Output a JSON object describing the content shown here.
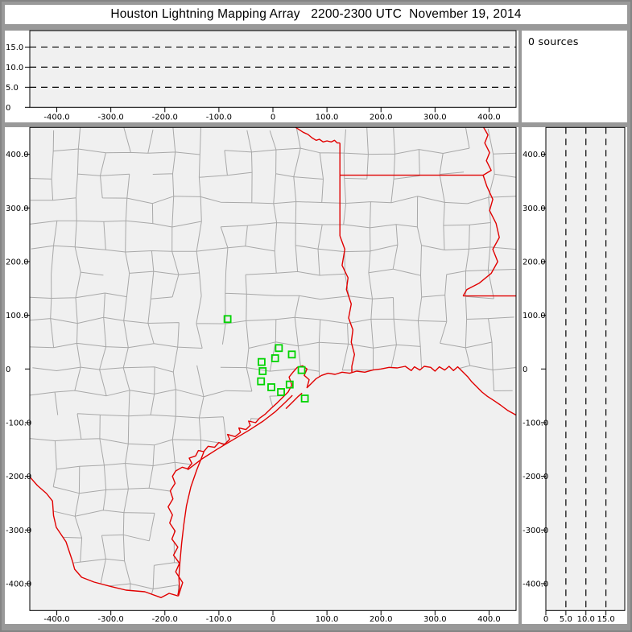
{
  "title": "Houston Lightning Mapping Array   2200-2300 UTC  November 19, 2014",
  "sources_panel": {
    "text": "0 sources"
  },
  "colors": {
    "chrome": "#999999",
    "panel_bg": "#ffffff",
    "plot_bg": "#f0f0f0",
    "county_line": "#a8a8a8",
    "state_line": "#e10000",
    "station": "#00d400",
    "dash_line": "#000000",
    "text": "#000000"
  },
  "chart_data": [
    {
      "id": "alt-vs-ew",
      "type": "scatter",
      "orientation": "altitude-vs-eastwest",
      "xlim": [
        -450,
        450
      ],
      "ylim": [
        0,
        19.1
      ],
      "x_ticks": {
        "values": [
          -400,
          -300,
          -200,
          -100,
          0,
          100,
          200,
          300,
          400
        ],
        "labels": [
          "-400.0",
          "-300.0",
          "-200.0",
          "-100.0",
          "0",
          "100.0",
          "200.0",
          "300.0",
          "400.0"
        ]
      },
      "y_ticks": {
        "values": [
          0,
          5,
          10,
          15
        ],
        "labels": [
          "0",
          "5.0",
          "10.0",
          "15.0"
        ]
      },
      "dashed_levels": [
        5,
        10,
        15
      ],
      "points": []
    },
    {
      "id": "plan-view-map",
      "type": "scatter",
      "orientation": "plan-view",
      "xlim": [
        -450,
        450
      ],
      "ylim": [
        -450,
        450
      ],
      "x_ticks": {
        "values": [
          -400,
          -300,
          -200,
          -100,
          0,
          100,
          200,
          300,
          400
        ],
        "labels": [
          "-400.0",
          "-300.0",
          "-200.0",
          "-100.0",
          "0",
          "100.0",
          "200.0",
          "300.0",
          "400.0"
        ]
      },
      "y_ticks": {
        "values": [
          400,
          300,
          200,
          100,
          0,
          -100,
          -200,
          -300,
          -400
        ],
        "labels": [
          "400.0",
          "300.0",
          "200.0",
          "100.0",
          "0",
          "-100.0",
          "-200.0",
          "-300.0",
          "-400.0"
        ]
      },
      "points": [],
      "stations": [
        [
          -84,
          93
        ],
        [
          11,
          39
        ],
        [
          35,
          27
        ],
        [
          4,
          20
        ],
        [
          -21,
          13
        ],
        [
          -19,
          -4
        ],
        [
          53,
          -2
        ],
        [
          -22,
          -23
        ],
        [
          -3,
          -34
        ],
        [
          31,
          -29
        ],
        [
          15,
          -43
        ],
        [
          59,
          -55
        ]
      ]
    },
    {
      "id": "alt-vs-ns",
      "type": "scatter",
      "orientation": "northsouth-vs-altitude",
      "xlim": [
        0,
        19.7
      ],
      "ylim": [
        -450,
        450
      ],
      "x_ticks": {
        "values": [
          0,
          5,
          10,
          15
        ],
        "labels": [
          "0",
          "5.0",
          "10.0",
          "15.0"
        ]
      },
      "y_ticks": {
        "values": [
          400,
          300,
          200,
          100,
          0,
          -100,
          -200,
          -300,
          -400
        ],
        "labels": [
          "400.0",
          "300.0",
          "200.0",
          "100.0",
          "0",
          "-100.0",
          "-200.0",
          "-300.0",
          "-400.0"
        ]
      },
      "dashed_levels": [
        5,
        10,
        15
      ],
      "points": []
    }
  ],
  "map_features": {
    "rio_grande": [
      [
        -450,
        -201
      ],
      [
        -436,
        -217
      ],
      [
        -419,
        -232
      ],
      [
        -408,
        -246
      ],
      [
        -406,
        -273
      ],
      [
        -401,
        -295
      ],
      [
        -383,
        -322
      ],
      [
        -371,
        -358
      ],
      [
        -367,
        -373
      ],
      [
        -354,
        -388
      ],
      [
        -331,
        -397
      ],
      [
        -301,
        -405
      ],
      [
        -272,
        -412
      ],
      [
        -237,
        -415
      ],
      [
        -207,
        -426
      ],
      [
        -192,
        -418
      ],
      [
        -175,
        -423
      ]
    ],
    "coast": [
      [
        -175,
        -423
      ],
      [
        -167,
        -398
      ],
      [
        -180,
        -378
      ],
      [
        -173,
        -362
      ],
      [
        -184,
        -347
      ],
      [
        -176,
        -332
      ],
      [
        -187,
        -317
      ],
      [
        -181,
        -302
      ],
      [
        -191,
        -287
      ],
      [
        -186,
        -272
      ],
      [
        -194,
        -257
      ],
      [
        -185,
        -242
      ],
      [
        -190,
        -227
      ],
      [
        -181,
        -213
      ],
      [
        -186,
        -200
      ],
      [
        -180,
        -190
      ],
      [
        -168,
        -183
      ],
      [
        -158,
        -186
      ],
      [
        -150,
        -176
      ],
      [
        -155,
        -166
      ],
      [
        -143,
        -162
      ],
      [
        -138,
        -152
      ],
      [
        -128,
        -154
      ],
      [
        -120,
        -144
      ],
      [
        -108,
        -146
      ],
      [
        -100,
        -137
      ],
      [
        -90,
        -141
      ],
      [
        -80,
        -131
      ],
      [
        -84,
        -122
      ],
      [
        -70,
        -126
      ],
      [
        -60,
        -118
      ],
      [
        -63,
        -110
      ],
      [
        -50,
        -113
      ],
      [
        -42,
        -105
      ],
      [
        -45,
        -97
      ],
      [
        -32,
        -100
      ],
      [
        -25,
        -92
      ],
      [
        -14,
        -84
      ],
      [
        -3,
        -73
      ],
      [
        8,
        -63
      ],
      [
        18,
        -53
      ],
      [
        28,
        -43
      ],
      [
        35,
        -30
      ],
      [
        30,
        -15
      ],
      [
        38,
        -5
      ],
      [
        45,
        3
      ],
      [
        55,
        6
      ],
      [
        63,
        0
      ],
      [
        58,
        -12
      ],
      [
        67,
        -20
      ],
      [
        63,
        -35
      ],
      [
        70,
        -28
      ],
      [
        80,
        -18
      ],
      [
        90,
        -12
      ],
      [
        102,
        -8
      ],
      [
        115,
        -10
      ],
      [
        128,
        -6
      ],
      [
        142,
        -8
      ],
      [
        155,
        -4
      ],
      [
        170,
        -6
      ],
      [
        185,
        -2
      ],
      [
        200,
        0
      ],
      [
        215,
        3
      ],
      [
        230,
        2
      ],
      [
        245,
        5
      ],
      [
        256,
        -3
      ],
      [
        262,
        4
      ],
      [
        272,
        -2
      ],
      [
        280,
        5
      ],
      [
        292,
        3
      ],
      [
        300,
        -4
      ],
      [
        308,
        4
      ],
      [
        318,
        -2
      ],
      [
        326,
        5
      ],
      [
        334,
        -3
      ],
      [
        342,
        4
      ],
      [
        352,
        -6
      ],
      [
        360,
        -14
      ],
      [
        368,
        -24
      ],
      [
        377,
        -33
      ],
      [
        387,
        -43
      ],
      [
        397,
        -51
      ],
      [
        409,
        -59
      ],
      [
        421,
        -67
      ],
      [
        434,
        -77
      ],
      [
        450,
        -86
      ]
    ],
    "barriers": [
      [
        [
          -128,
          -155
        ],
        [
          -141,
          -188
        ],
        [
          -152,
          -220
        ],
        [
          -160,
          -255
        ],
        [
          -165,
          -290
        ],
        [
          -169,
          -325
        ],
        [
          -172,
          -358
        ],
        [
          -174,
          -388
        ],
        [
          -173,
          -408
        ],
        [
          -176,
          -421
        ]
      ],
      [
        [
          -158,
          -188
        ],
        [
          -132,
          -168
        ],
        [
          -104,
          -150
        ],
        [
          -74,
          -132
        ],
        [
          -44,
          -114
        ],
        [
          -18,
          -97
        ],
        [
          4,
          -80
        ],
        [
          22,
          -63
        ],
        [
          36,
          -49
        ]
      ],
      [
        [
          24,
          -74
        ],
        [
          36,
          -62
        ],
        [
          47,
          -51
        ],
        [
          54,
          -45
        ]
      ]
    ],
    "red_river": [
      [
        42,
        450
      ],
      [
        47,
        447
      ],
      [
        56,
        441
      ],
      [
        65,
        437
      ],
      [
        72,
        431
      ],
      [
        80,
        426
      ],
      [
        86,
        428
      ],
      [
        93,
        423
      ],
      [
        100,
        425
      ],
      [
        108,
        423
      ],
      [
        114,
        426
      ],
      [
        119,
        421
      ],
      [
        124,
        421
      ]
    ],
    "tx_ar_border": [
      [
        124,
        421
      ],
      [
        124,
        361
      ]
    ],
    "ar_la_border": [
      [
        124,
        361
      ],
      [
        389,
        361
      ]
    ],
    "tx_la_border": [
      [
        124,
        361
      ],
      [
        124,
        248
      ]
    ],
    "sabine_river": [
      [
        124,
        248
      ],
      [
        133,
        223
      ],
      [
        128,
        193
      ],
      [
        139,
        170
      ],
      [
        136,
        148
      ],
      [
        145,
        121
      ],
      [
        140,
        95
      ],
      [
        148,
        73
      ],
      [
        145,
        50
      ],
      [
        151,
        27
      ],
      [
        146,
        5
      ],
      [
        146,
        -6
      ]
    ],
    "mississippi_river": [
      [
        390,
        450
      ],
      [
        398,
        436
      ],
      [
        392,
        421
      ],
      [
        401,
        403
      ],
      [
        395,
        388
      ],
      [
        404,
        370
      ],
      [
        389,
        361
      ],
      [
        396,
        340
      ],
      [
        407,
        316
      ],
      [
        401,
        295
      ],
      [
        413,
        271
      ],
      [
        419,
        245
      ],
      [
        407,
        223
      ],
      [
        416,
        200
      ],
      [
        404,
        178
      ],
      [
        382,
        160
      ],
      [
        359,
        148
      ],
      [
        352,
        136
      ]
    ],
    "la_ms_border": [
      [
        352,
        136
      ],
      [
        450,
        136
      ]
    ]
  },
  "county_grid": {
    "step": 45,
    "jitter": 14,
    "skip_probability": 0.2,
    "seed": 20141119
  }
}
